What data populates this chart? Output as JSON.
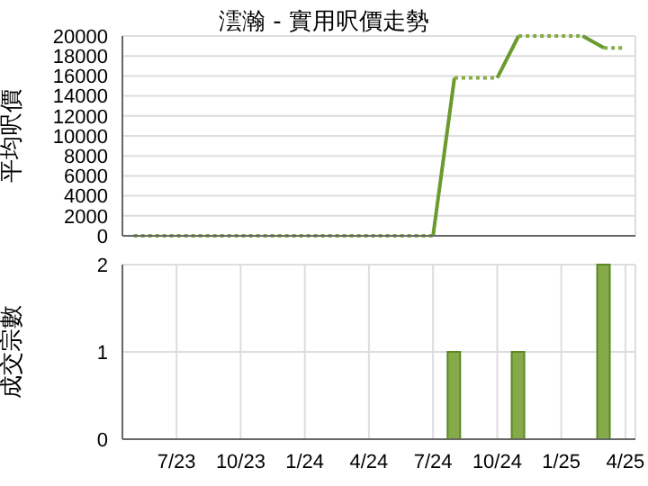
{
  "chart_data": [
    {
      "type": "line",
      "title": "澐瀚 - 實用呎價走勢",
      "ylabel": "平均呎價",
      "xlim": [
        "2023-04-15",
        "2025-04-15"
      ],
      "xticks": [
        {
          "value": "2023-07",
          "label": null
        },
        {
          "value": "2023-10",
          "label": null
        },
        {
          "value": "2024-01",
          "label": null
        },
        {
          "value": "2024-04",
          "label": null
        },
        {
          "value": "2024-07",
          "label": null
        },
        {
          "value": "2024-10",
          "label": null
        },
        {
          "value": "2025-01",
          "label": null
        },
        {
          "value": "2025-04",
          "label": null
        }
      ],
      "ylim": [
        0,
        20000
      ],
      "yticks": [
        0,
        2000,
        4000,
        6000,
        8000,
        10000,
        12000,
        14000,
        16000,
        18000,
        20000
      ],
      "tick_labels": "y",
      "grid": true,
      "legend": false,
      "marker": "none",
      "series": [
        {
          "color": "#6b9a2e",
          "line_style": "solid",
          "x": [
            "2024-07",
            "2024-08",
            "2024-09",
            "2024-10",
            "2024-11",
            "2024-12",
            "2025-01",
            "2025-02",
            "2025-03"
          ],
          "values": [
            0,
            15800,
            null,
            15800,
            20000,
            null,
            null,
            20000,
            18800
          ]
        },
        {
          "color": "#86ab45",
          "line_style": "dotted",
          "x": [
            "2023-05",
            "2023-06",
            "2023-07",
            "2023-08",
            "2023-09",
            "2023-10",
            "2023-11",
            "2023-12",
            "2024-01",
            "2024-02",
            "2024-03",
            "2024-04",
            "2024-05",
            "2024-06",
            "2024-07",
            "2024-07-20",
            "2024-08",
            "2024-09",
            "2024-10",
            "2024-10-20",
            "2024-11",
            "2024-12",
            "2025-01",
            "2025-02",
            "2025-02-20",
            "2025-03",
            "2025-04"
          ],
          "values": [
            0,
            0,
            0,
            0,
            0,
            0,
            0,
            0,
            0,
            0,
            0,
            0,
            0,
            0,
            0,
            null,
            15800,
            15800,
            15800,
            null,
            20000,
            20000,
            20000,
            20000,
            null,
            18800,
            18800
          ]
        }
      ]
    },
    {
      "type": "bar",
      "ylabel": "成交宗數",
      "xlim": [
        "2023-04-15",
        "2025-04-15"
      ],
      "xticks": [
        {
          "value": "2023-07",
          "label": "7/23"
        },
        {
          "value": "2023-10",
          "label": "10/23"
        },
        {
          "value": "2024-01",
          "label": "1/24"
        },
        {
          "value": "2024-04",
          "label": "4/24"
        },
        {
          "value": "2024-07",
          "label": "7/24"
        },
        {
          "value": "2024-10",
          "label": "10/24"
        },
        {
          "value": "2025-01",
          "label": "1/25"
        },
        {
          "value": "2025-04",
          "label": "4/25"
        }
      ],
      "ylim": [
        0,
        2
      ],
      "yticks": [
        0,
        1,
        2
      ],
      "grid": true,
      "legend": false,
      "x": [
        "2024-08",
        "2024-11",
        "2025-03"
      ],
      "values": [
        1,
        1,
        2
      ],
      "color": "#86a94a"
    }
  ]
}
